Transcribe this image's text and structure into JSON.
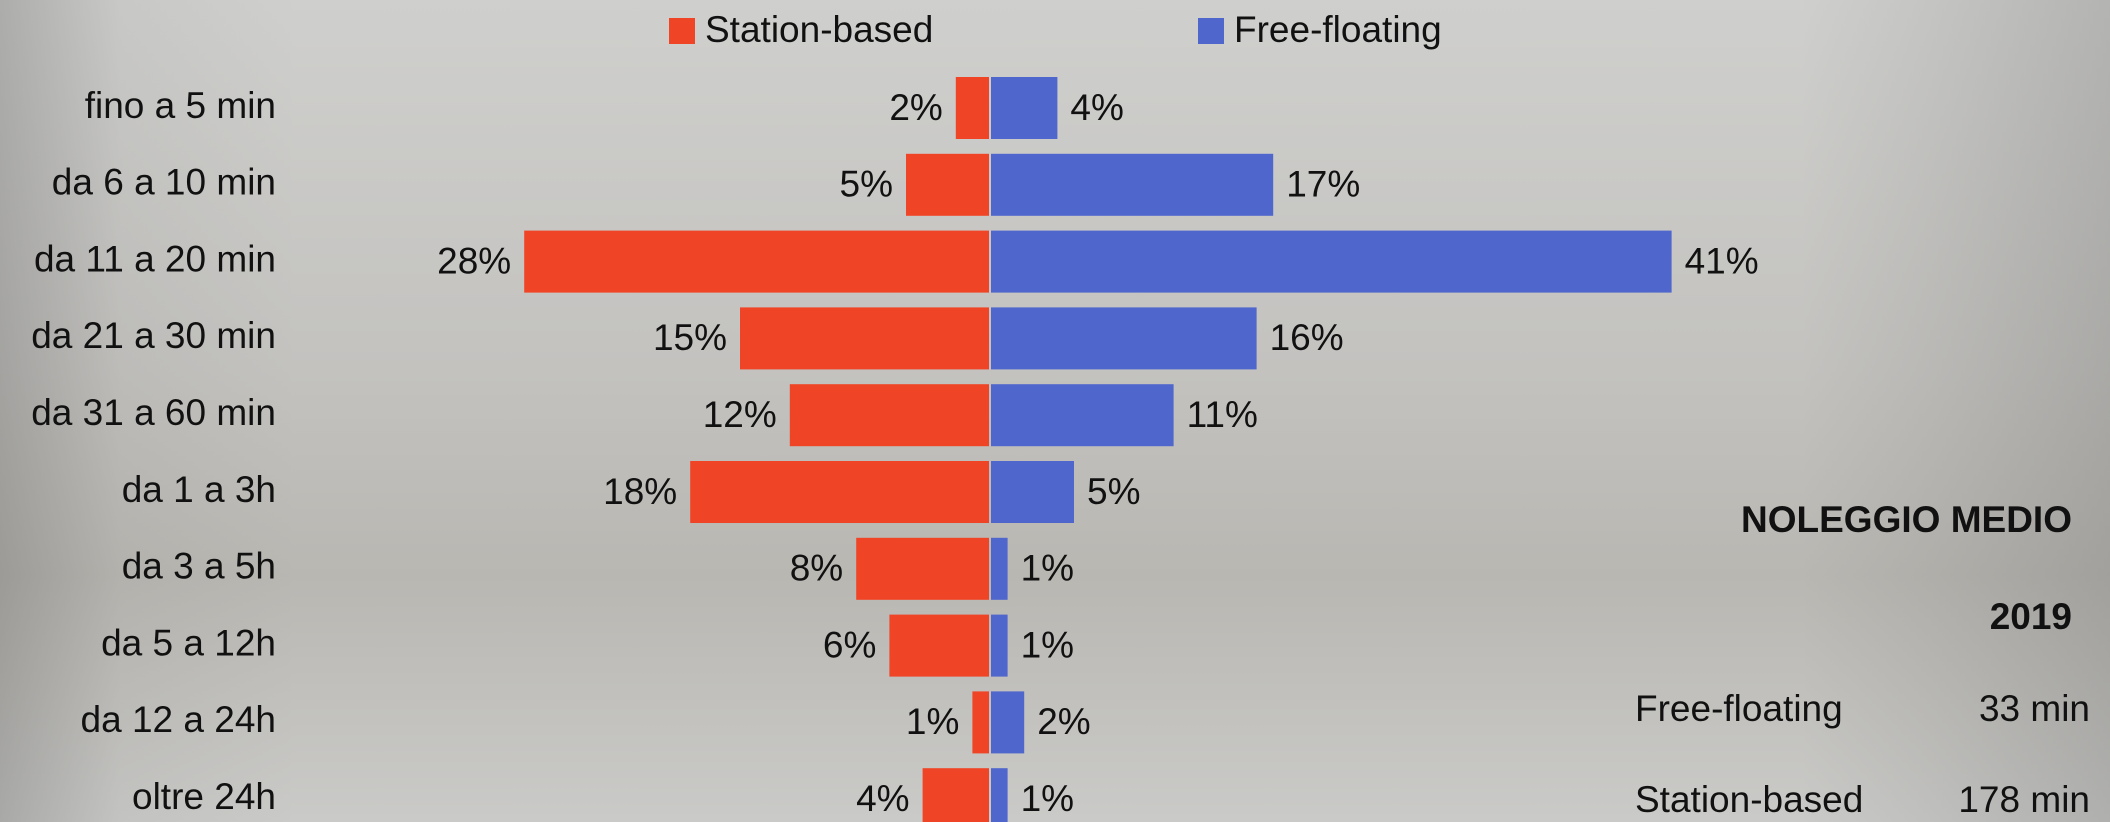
{
  "chart_data": {
    "type": "butterfly",
    "categories": [
      "fino a 5 min",
      "da 6 a 10 min",
      "da 11 a 20 min",
      "da 21 a 30 min",
      "da 31 a 60 min",
      "da 1 a 3h",
      "da 3 a 5h",
      "da 5 a 12h",
      "da 12 a 24h",
      "oltre 24h"
    ],
    "series": [
      {
        "name": "Station-based",
        "color": "#f04426",
        "values": [
          2,
          5,
          28,
          15,
          12,
          18,
          8,
          6,
          1,
          4
        ],
        "value_labels": [
          "2%",
          "5%",
          "28%",
          "15%",
          "12%",
          "18%",
          "8%",
          "6%",
          "1%",
          "4%"
        ]
      },
      {
        "name": "Free-floating",
        "color": "#4f66cc",
        "values": [
          4,
          17,
          41,
          16,
          11,
          5,
          1,
          1,
          2,
          1
        ],
        "value_labels": [
          "4%",
          "17%",
          "41%",
          "16%",
          "11%",
          "5%",
          "1%",
          "1%",
          "2%",
          "1%"
        ]
      }
    ]
  },
  "summary": {
    "title": "NOLEGGIO MEDIO",
    "year": "2019",
    "rows": [
      [
        "Free-floating",
        "33 min"
      ],
      [
        "Station-based",
        "178 min"
      ]
    ]
  }
}
